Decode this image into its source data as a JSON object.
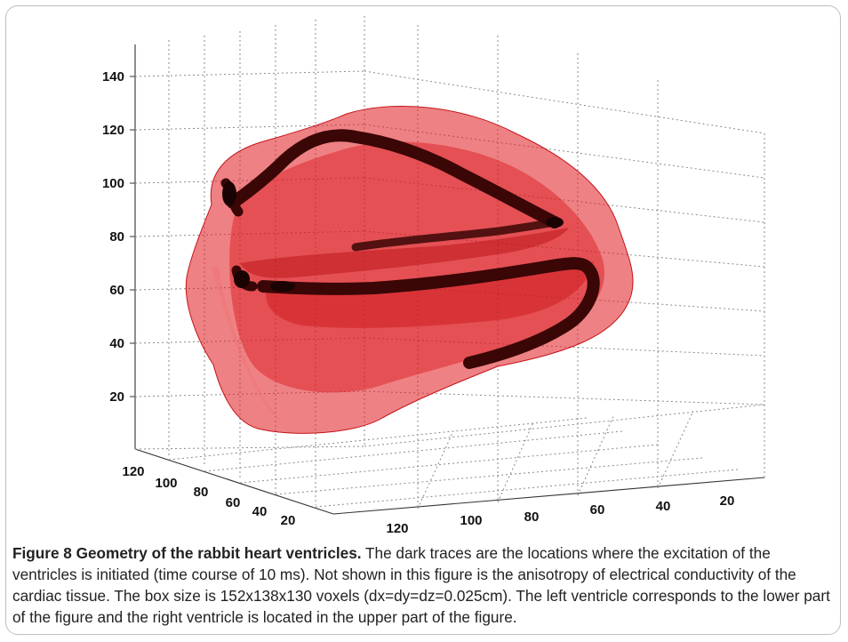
{
  "figure": {
    "caption_title": "Figure 8 Geometry of the rabbit heart ventricles.",
    "caption_text": "The dark traces are the locations where the excitation of the ventricles is initiated (time course of 10 ms). Not shown in this figure is the anisotropy of electrical conductivity of the cardiac tissue. The box size is 152x138x130 voxels (dx=dy=dz=0.025cm). The left ventricle corresponds to the lower part of the figure and the right ventricle is located in the upper part of the figure."
  },
  "axes": {
    "z_ticks": [
      "140",
      "120",
      "100",
      "80",
      "60",
      "40",
      "20"
    ],
    "y_ticks": [
      "120",
      "100",
      "80",
      "60",
      "40",
      "20"
    ],
    "x_ticks": [
      "120",
      "100",
      "80",
      "60",
      "40",
      "20"
    ]
  },
  "colors": {
    "tissue": "#e0191e",
    "trace": "#3a0606"
  }
}
